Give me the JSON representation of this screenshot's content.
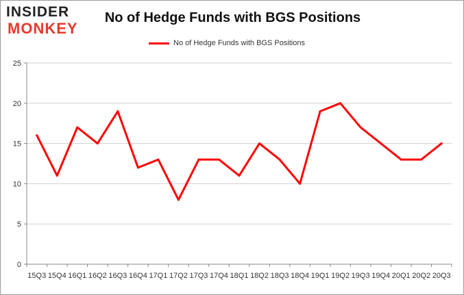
{
  "logo": {
    "line1": "INSIDER",
    "line2": "MONKEY"
  },
  "chart_data": {
    "type": "line",
    "title": "No of Hedge Funds with BGS Positions",
    "xlabel": "",
    "ylabel": "",
    "categories": [
      "15Q3",
      "15Q4",
      "16Q1",
      "16Q2",
      "16Q3",
      "16Q4",
      "17Q1",
      "17Q2",
      "17Q3",
      "17Q4",
      "18Q1",
      "18Q2",
      "18Q3",
      "18Q4",
      "19Q1",
      "19Q2",
      "19Q3",
      "19Q4",
      "20Q1",
      "20Q2",
      "20Q3"
    ],
    "series": [
      {
        "name": "No of Hedge Funds with BGS Positions",
        "color": "#ff0000",
        "values": [
          16,
          11,
          17,
          15,
          19,
          12,
          13,
          8,
          13,
          13,
          11,
          15,
          13,
          10,
          19,
          20,
          17,
          15,
          13,
          13,
          15
        ]
      }
    ],
    "ylim": [
      0,
      25
    ],
    "yticks": [
      0,
      5,
      10,
      15,
      20,
      25
    ],
    "grid": true,
    "legend_position": "top-center"
  }
}
